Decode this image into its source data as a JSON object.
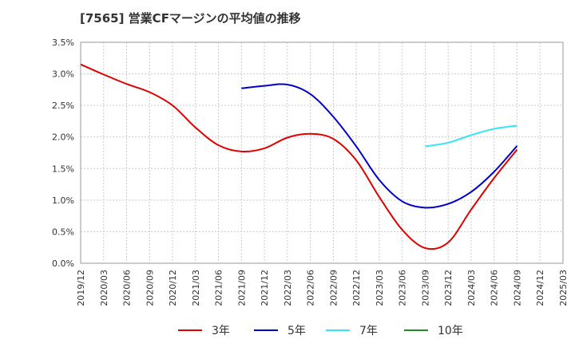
{
  "chart_data": {
    "type": "line",
    "title": "[7565]  営業CFマージンの平均値の推移",
    "xlabel": "",
    "ylabel": "",
    "ylim": [
      0,
      3.5
    ],
    "y_ticks": [
      "0.0%",
      "0.5%",
      "1.0%",
      "1.5%",
      "2.0%",
      "2.5%",
      "3.0%",
      "3.5%"
    ],
    "x_categories": [
      "2019/12",
      "2020/03",
      "2020/06",
      "2020/09",
      "2020/12",
      "2021/03",
      "2021/06",
      "2021/09",
      "2021/12",
      "2022/03",
      "2022/06",
      "2022/09",
      "2022/12",
      "2023/03",
      "2023/06",
      "2023/09",
      "2023/12",
      "2024/03",
      "2024/06",
      "2024/09",
      "2024/12",
      "2025/03"
    ],
    "grid": true,
    "legend_position": "bottom",
    "series": [
      {
        "name": "3年",
        "color": "#e00000",
        "x": [
          "2019/12",
          "2020/03",
          "2020/06",
          "2020/09",
          "2020/12",
          "2021/03",
          "2021/06",
          "2021/09",
          "2021/12",
          "2022/03",
          "2022/06",
          "2022/09",
          "2022/12",
          "2023/03",
          "2023/06",
          "2023/09",
          "2023/12",
          "2024/03",
          "2024/06",
          "2024/09"
        ],
        "values": [
          3.15,
          2.99,
          2.84,
          2.71,
          2.5,
          2.15,
          1.87,
          1.77,
          1.82,
          1.99,
          2.05,
          1.97,
          1.63,
          1.05,
          0.53,
          0.24,
          0.33,
          0.85,
          1.35,
          1.8
        ]
      },
      {
        "name": "5年",
        "color": "#0000cc",
        "x": [
          "2021/09",
          "2021/12",
          "2022/03",
          "2022/06",
          "2022/09",
          "2022/12",
          "2023/03",
          "2023/06",
          "2023/09",
          "2023/12",
          "2024/03",
          "2024/06",
          "2024/09"
        ],
        "values": [
          2.77,
          2.81,
          2.83,
          2.68,
          2.32,
          1.85,
          1.32,
          0.98,
          0.88,
          0.94,
          1.13,
          1.45,
          1.86
        ]
      },
      {
        "name": "7年",
        "color": "#33e5f5",
        "x": [
          "2023/09",
          "2023/12",
          "2024/03",
          "2024/06",
          "2024/09"
        ],
        "values": [
          1.85,
          1.91,
          2.03,
          2.13,
          2.18
        ]
      },
      {
        "name": "10年",
        "color": "#228b22",
        "x": [],
        "values": []
      }
    ]
  }
}
